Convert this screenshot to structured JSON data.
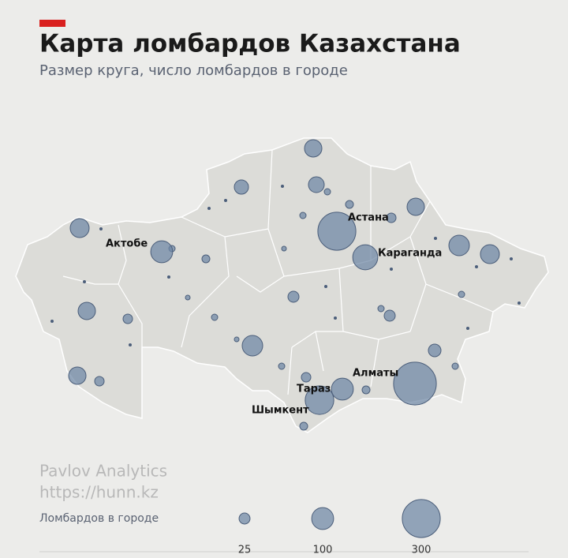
{
  "header": {
    "title": "Карта ломбардов Казахстана",
    "subtitle": "Размер круга, число ломбардов в городе"
  },
  "cities": [
    {
      "name": "Астана",
      "count": 300
    },
    {
      "name": "Актобе",
      "count": 100
    },
    {
      "name": "Караганда",
      "count": 130
    },
    {
      "name": "Алматы",
      "count": 380
    },
    {
      "name": "Тараз",
      "count": 100
    },
    {
      "name": "Шымкент",
      "count": 170
    }
  ],
  "credits": [
    "Pavlov Analytics",
    "https://hunn.kz"
  ],
  "legend": {
    "label": "Ломбардов в городе",
    "sizes": [
      25,
      100,
      300
    ]
  }
}
